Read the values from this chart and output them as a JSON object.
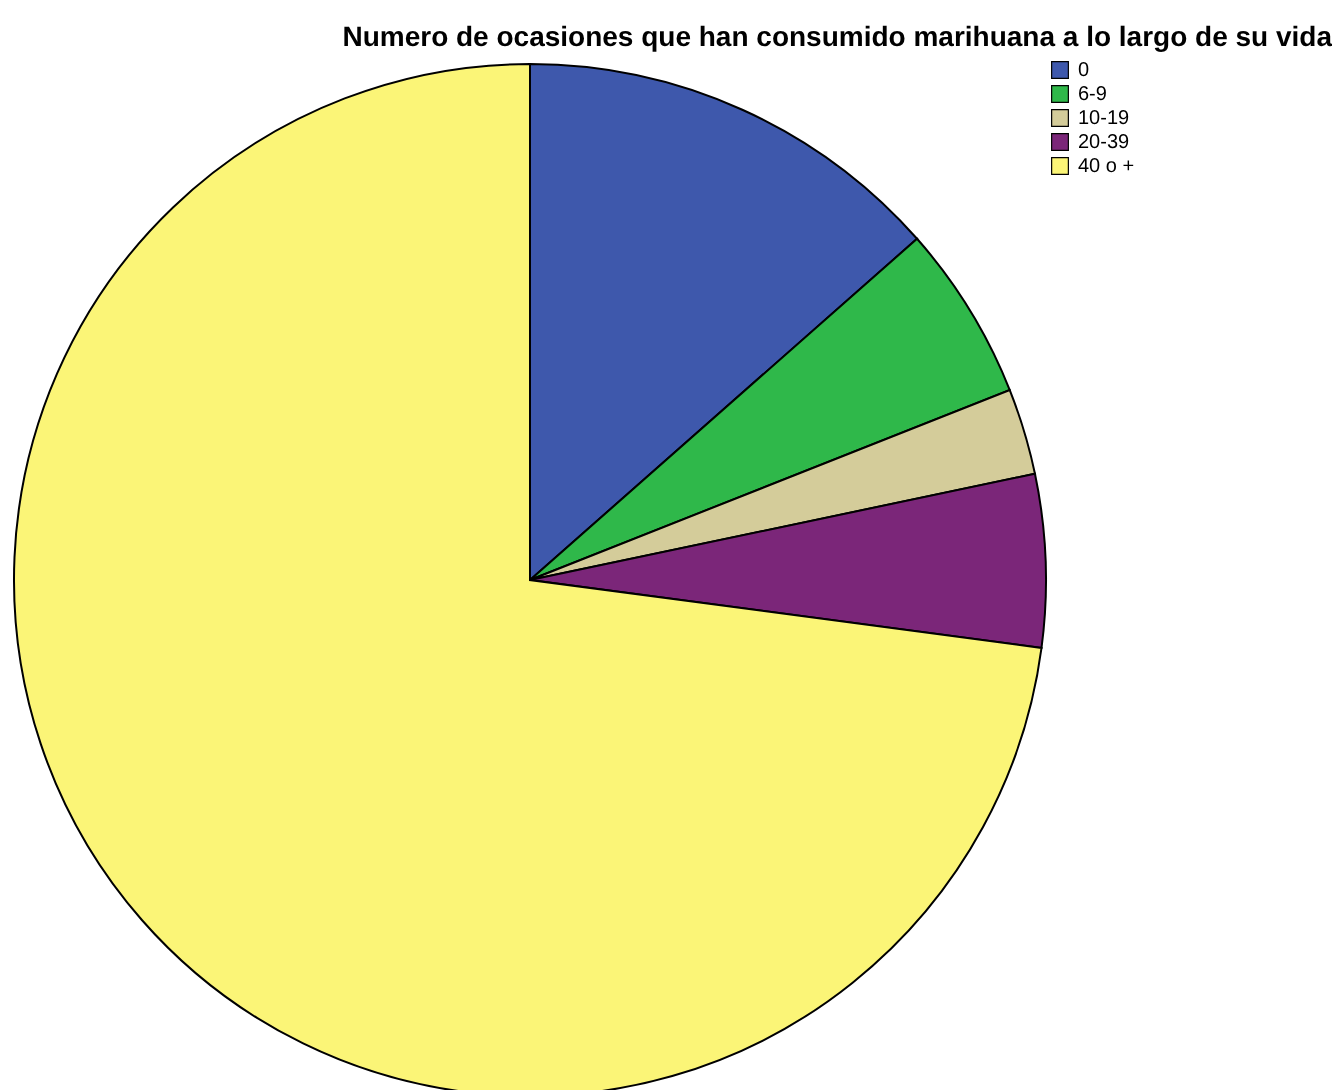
{
  "chart_data": {
    "type": "pie",
    "title": "Numero de ocasiones que han consumido marihuana a lo largo de su vida",
    "categories": [
      "0",
      "6-9",
      "10-19",
      "20-39",
      "40 o +"
    ],
    "values": [
      13.5,
      5.5,
      2.7,
      5.4,
      72.9
    ],
    "colors": [
      "#3e58ac",
      "#2fb84a",
      "#d4cc9a",
      "#7b2679",
      "#fbf577"
    ],
    "legend": "top right"
  }
}
